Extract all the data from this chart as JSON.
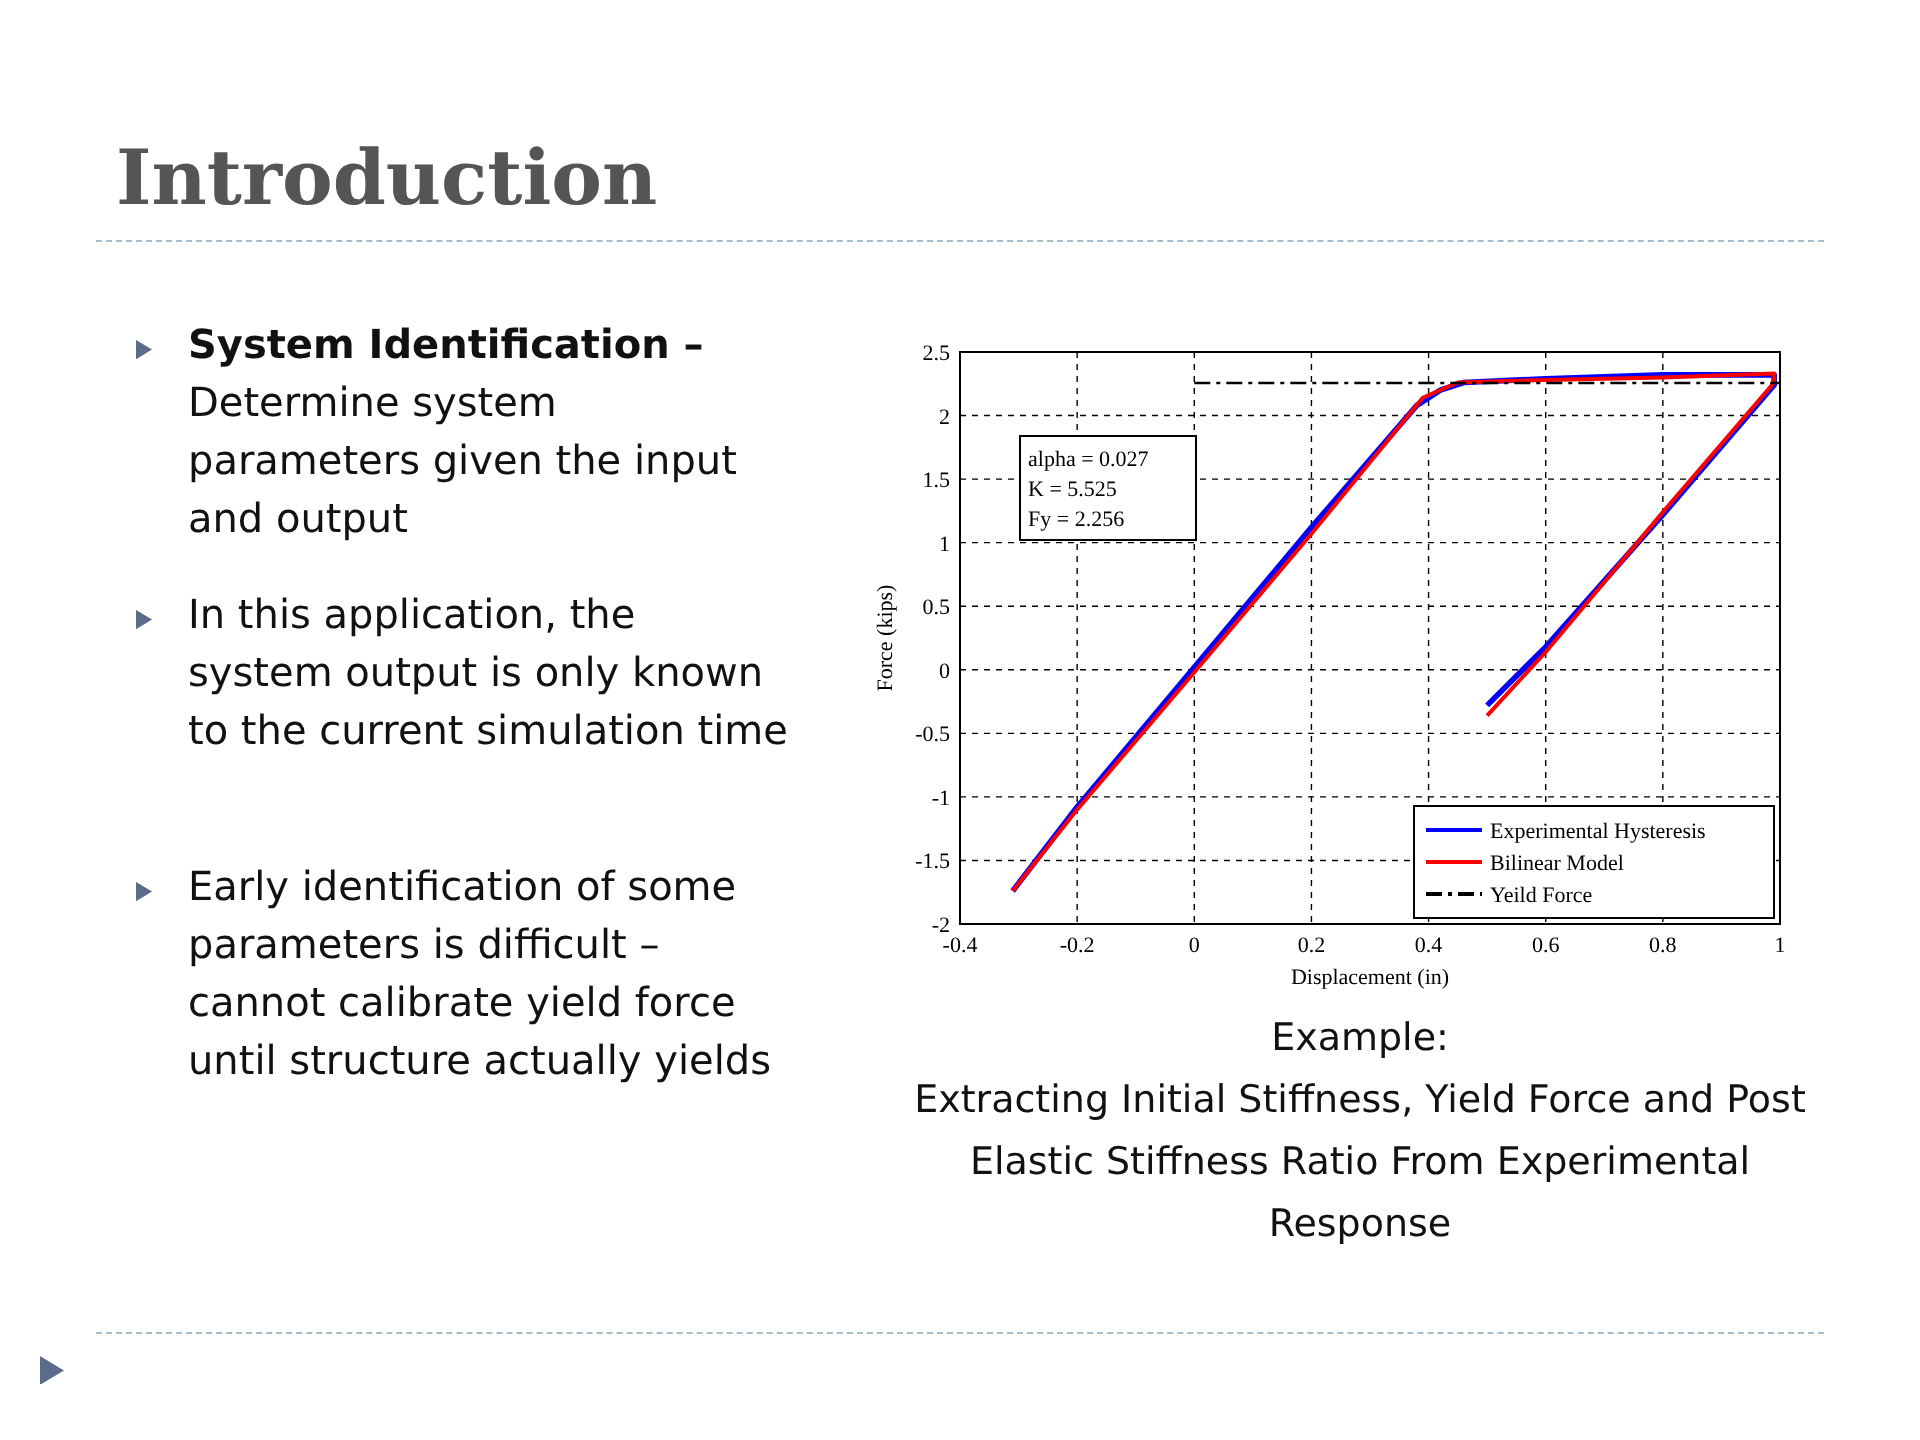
{
  "chart_data": {
    "type": "line",
    "title": "Introduction",
    "xlabel": "Displacement (in)",
    "ylabel": "Force (kips)",
    "xlim": [
      -0.4,
      1
    ],
    "xticks": [
      -0.4,
      -0.2,
      0,
      0.2,
      0.4,
      0.6,
      0.8,
      1
    ],
    "ylim": [
      -2,
      2.5
    ],
    "yticks": [
      -2,
      -1.5,
      -1,
      -0.5,
      0,
      0.5,
      1,
      1.5,
      2,
      2.5
    ],
    "grid": true,
    "legend": "bottom right",
    "marker": "none",
    "series": [
      {
        "name": "Experimental Hysteresis",
        "color": "#0000ff",
        "line_style": "solid",
        "x": [
          -0.31,
          -0.2,
          0,
          0.2,
          0.38,
          0.42,
          0.46,
          0.6,
          0.8,
          0.99,
          0.99,
          0.8,
          0.6,
          0.5
        ],
        "values": [
          -1.74,
          -1.08,
          0.02,
          1.12,
          2.08,
          2.2,
          2.26,
          2.29,
          2.32,
          2.32,
          2.24,
          1.22,
          0.18,
          -0.28
        ]
      },
      {
        "name": "Bilinear Model",
        "color": "#ff0000",
        "line_style": "solid",
        "x": [
          -0.31,
          -0.2,
          0,
          0.2,
          0.39,
          0.45,
          0.6,
          0.8,
          0.99,
          0.99,
          0.8,
          0.6,
          0.5
        ],
        "values": [
          -1.74,
          -1.1,
          -0.02,
          1.07,
          2.14,
          2.26,
          2.28,
          2.3,
          2.33,
          2.26,
          1.24,
          0.14,
          -0.36
        ]
      },
      {
        "name": "Yeild Force",
        "color": "#000000",
        "line_style": "dashdot",
        "x": [
          0,
          1
        ],
        "values": [
          2.256,
          2.256
        ]
      }
    ],
    "annotations": [
      "alpha = 0.027",
      "K = 5.525",
      "Fy = 2.256",
      "System Identification –",
      "Determine system parameters given the input and output",
      "In this application, the system output  is only known to the current simulation time",
      "Early identification of some parameters is difficult – cannot calibrate yield force until structure actually yields",
      "Example:",
      "Extracting Initial Stiffness, Yield Force and Post Elastic Stiffness Ratio From Experimental Response"
    ]
  }
}
